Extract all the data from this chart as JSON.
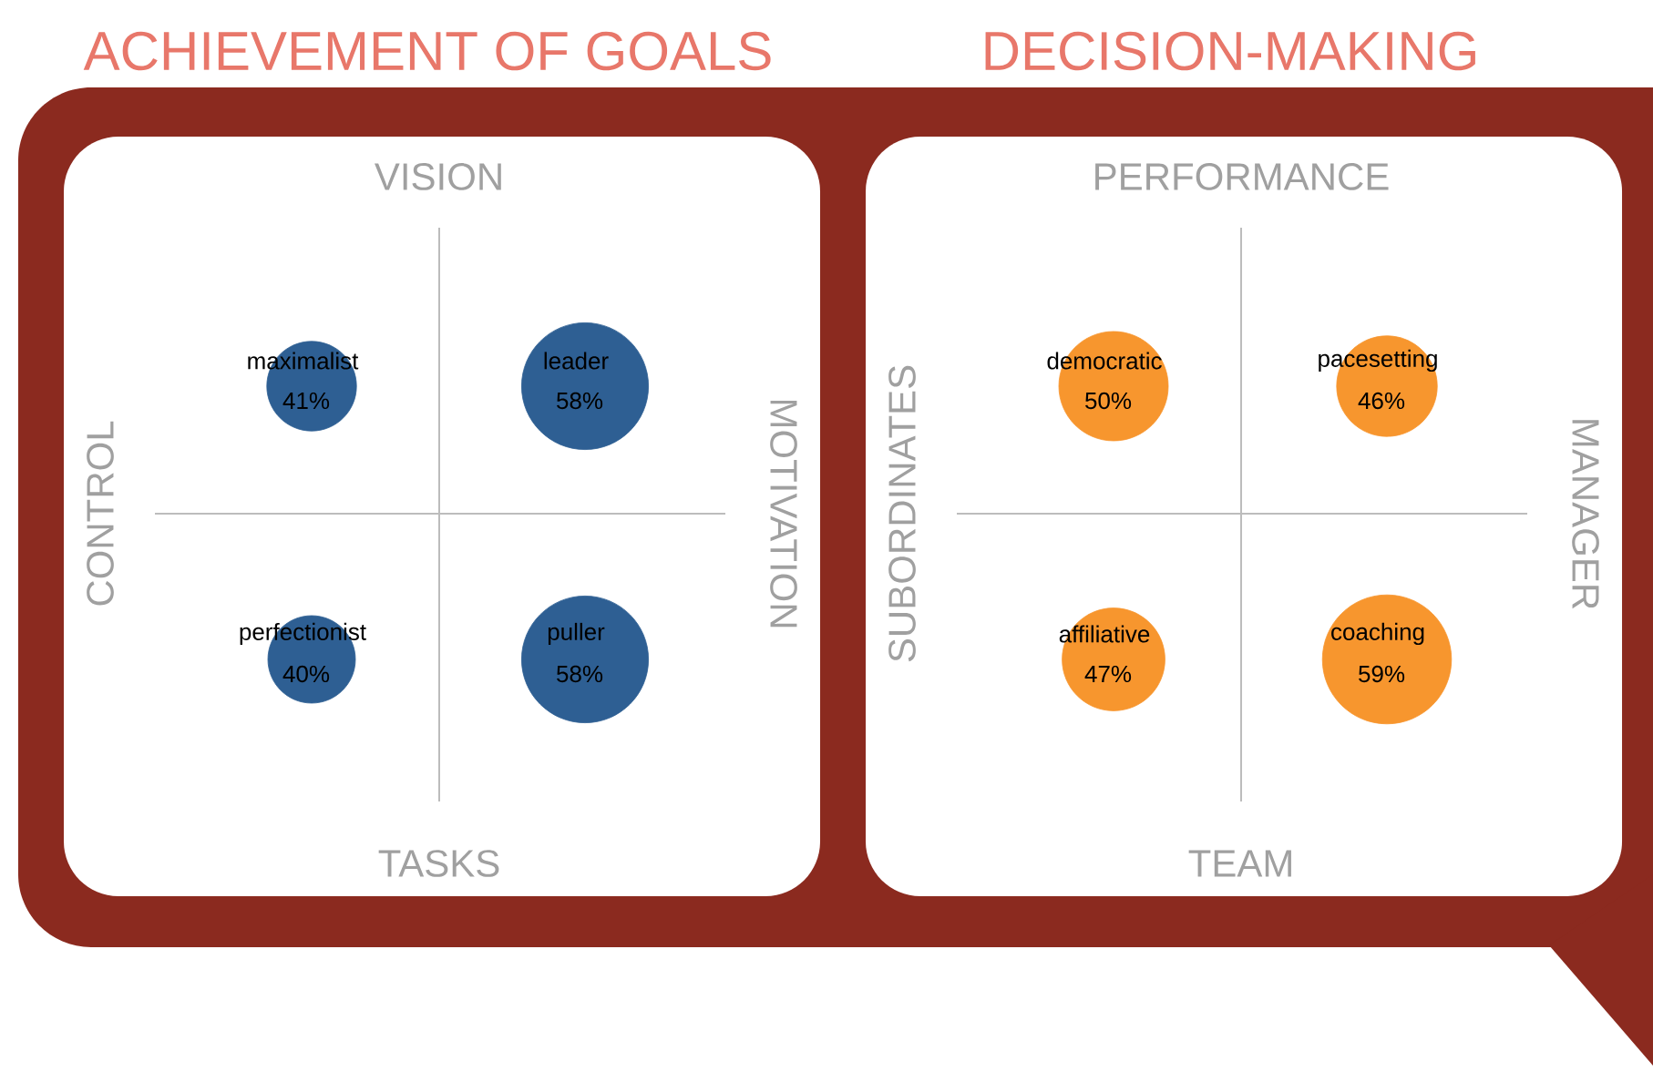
{
  "chart_data": [
    {
      "type": "other",
      "title": "ACHIEVEMENT OF GOALS",
      "x2label": "VISION",
      "xlabel": "TASKS",
      "ylabel": "CONTROL",
      "y2label": "MOTIVATION",
      "categories": [
        "maximalist",
        "leader",
        "perfectionist",
        "puller"
      ],
      "values": [
        41,
        58,
        40,
        58
      ],
      "value_labels": [
        "41%",
        "58%",
        "40%",
        "58%"
      ],
      "color": "#2e5f93"
    },
    {
      "type": "other",
      "title": "DECISION-MAKING",
      "x2label": "PERFORMANCE",
      "xlabel": "TEAM",
      "ylabel": "SUBORDINATES",
      "y2label": "MANAGER",
      "categories": [
        "democratic",
        "pacesetting",
        "affiliative",
        "coaching"
      ],
      "values": [
        50,
        46,
        47,
        59
      ],
      "value_labels": [
        "50%",
        "46%",
        "47%",
        "59%"
      ],
      "color": "#f7962e"
    }
  ]
}
